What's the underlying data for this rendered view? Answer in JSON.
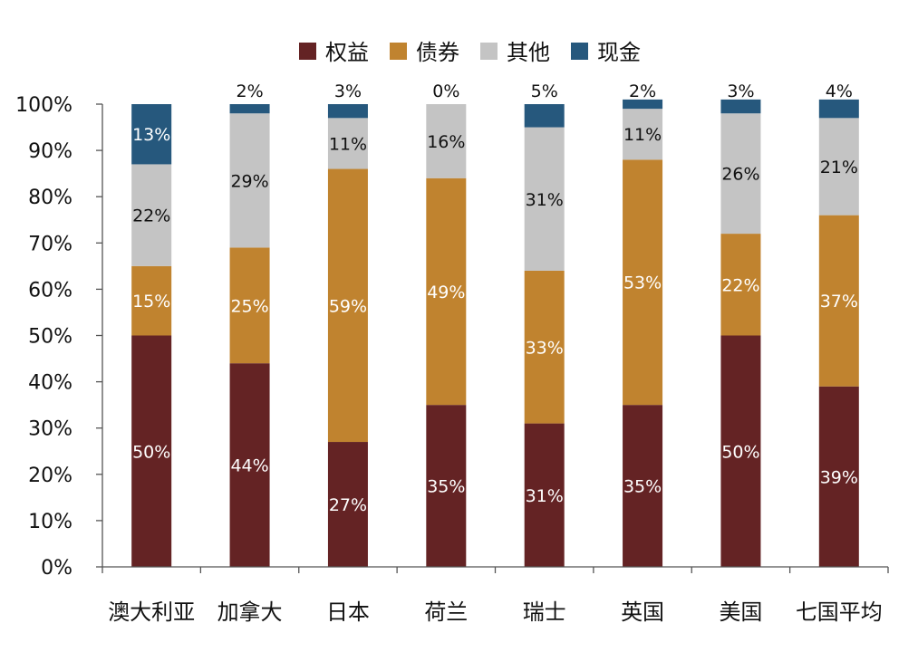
{
  "chart_data": {
    "type": "bar",
    "stacked": true,
    "categories": [
      "澳大利亚",
      "加拿大",
      "日本",
      "荷兰",
      "瑞士",
      "英国",
      "美国",
      "七国平均"
    ],
    "series": [
      {
        "name": "权益",
        "color": "#642324",
        "values": [
          50,
          44,
          27,
          35,
          31,
          35,
          50,
          39
        ]
      },
      {
        "name": "债券",
        "color": "#c0832f",
        "values": [
          15,
          25,
          59,
          49,
          33,
          53,
          22,
          37
        ]
      },
      {
        "name": "其他",
        "color": "#c4c4c4",
        "values": [
          22,
          29,
          11,
          16,
          31,
          11,
          26,
          21
        ]
      },
      {
        "name": "现金",
        "color": "#26587d",
        "values": [
          13,
          2,
          3,
          0,
          5,
          2,
          3,
          4
        ]
      }
    ],
    "data_labels": [
      [
        "50%",
        "44%",
        "27%",
        "35%",
        "31%",
        "35%",
        "50%",
        "39%"
      ],
      [
        "15%",
        "25%",
        "59%",
        "49%",
        "33%",
        "53%",
        "22%",
        "37%"
      ],
      [
        "22%",
        "29%",
        "11%",
        "16%",
        "31%",
        "11%",
        "26%",
        "21%"
      ],
      [
        "13%",
        "2%",
        "3%",
        "0%",
        "5%",
        "2%",
        "3%",
        "4%"
      ]
    ],
    "yticks": [
      "0%",
      "10%",
      "20%",
      "30%",
      "40%",
      "50%",
      "60%",
      "70%",
      "80%",
      "90%",
      "100%"
    ],
    "ylim": [
      0,
      100
    ],
    "legend_position": "top",
    "grid": false
  }
}
